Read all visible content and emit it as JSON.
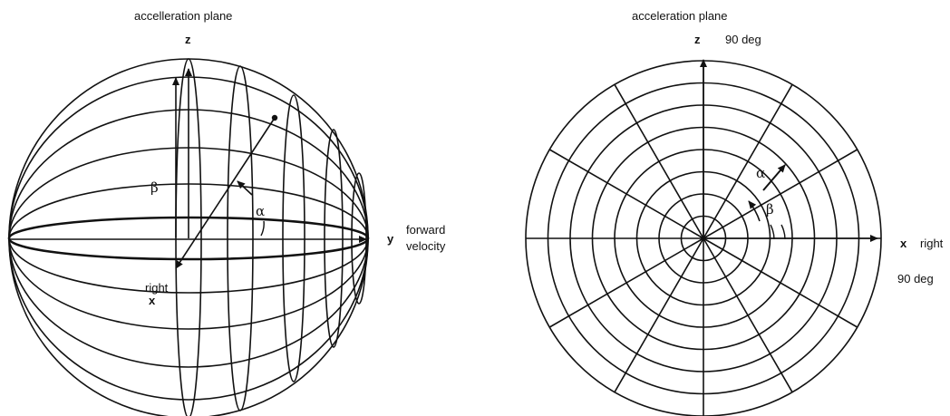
{
  "left_diagram": {
    "title": "accelleration plane",
    "axis_z": "z",
    "axis_y": "y",
    "y_caption_line1": "forward",
    "y_caption_line2": "velocity",
    "x_caption": "right",
    "axis_x": "x",
    "alpha": "α",
    "beta": "β"
  },
  "right_diagram": {
    "title": "acceleration plane",
    "axis_z": "z",
    "z_caption": "90 deg",
    "axis_x": "x",
    "x_caption": "right",
    "x_angle": "90 deg",
    "alpha": "α",
    "beta": "β",
    "radial_lines": 12,
    "concentric_rings": 8
  },
  "colors": {
    "ink": "#111111",
    "background": "#ffffff"
  }
}
